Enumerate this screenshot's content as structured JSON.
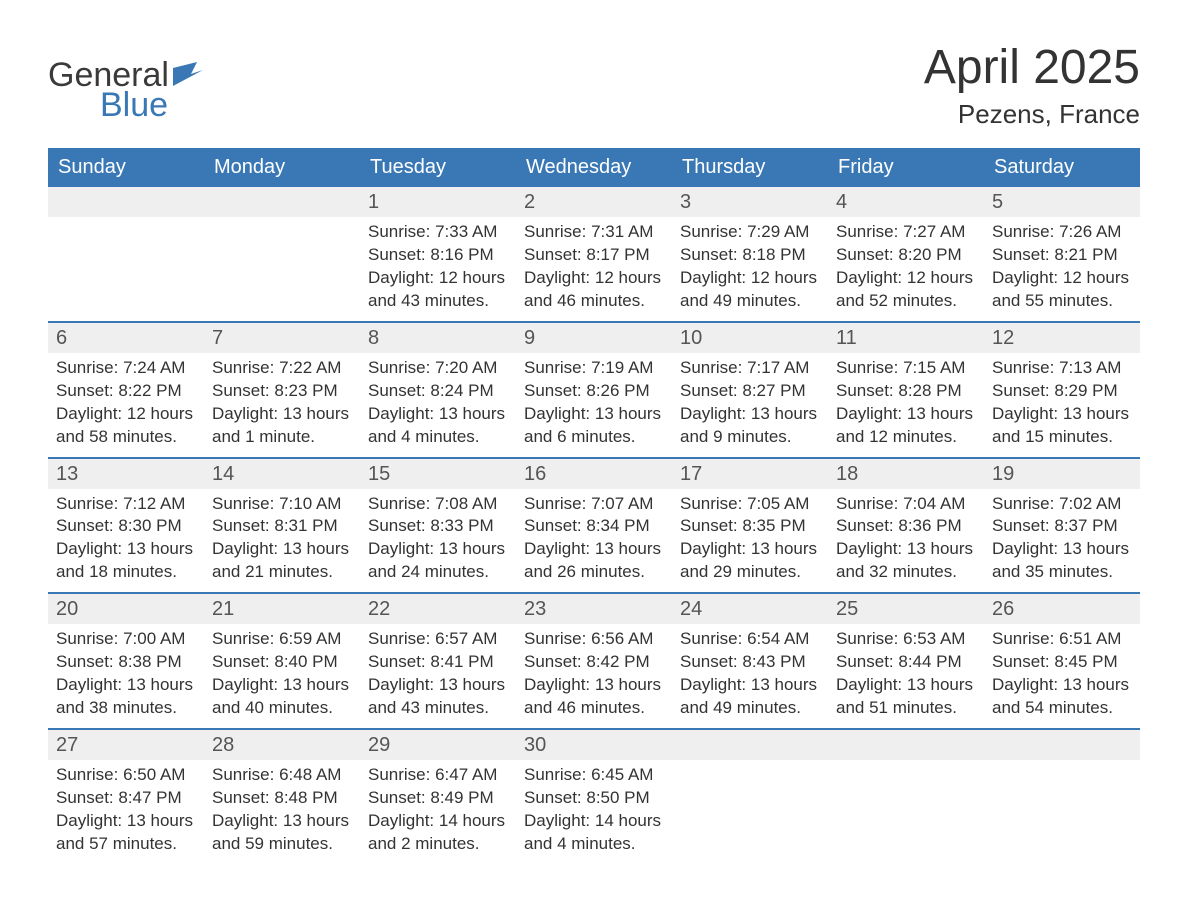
{
  "brand": {
    "word1": "General",
    "word2": "Blue",
    "word1_color": "#3a3a3a",
    "word2_color": "#3a78b5",
    "flag_color": "#3a78b5"
  },
  "title": "April 2025",
  "location": "Pezens, France",
  "colors": {
    "header_bg": "#3a78b5",
    "header_text": "#ffffff",
    "daynum_bg": "#efefef",
    "daynum_text": "#555555",
    "body_text": "#333333",
    "week_border": "#3a78b5",
    "page_bg": "#ffffff"
  },
  "fonts": {
    "title_size_pt": 36,
    "location_size_pt": 20,
    "header_size_pt": 15,
    "daynum_size_pt": 15,
    "body_size_pt": 13
  },
  "weekdays": [
    "Sunday",
    "Monday",
    "Tuesday",
    "Wednesday",
    "Thursday",
    "Friday",
    "Saturday"
  ],
  "weeks": [
    [
      {
        "day": null
      },
      {
        "day": null
      },
      {
        "day": "1",
        "sunrise": "Sunrise: 7:33 AM",
        "sunset": "Sunset: 8:16 PM",
        "daylight1": "Daylight: 12 hours",
        "daylight2": "and 43 minutes."
      },
      {
        "day": "2",
        "sunrise": "Sunrise: 7:31 AM",
        "sunset": "Sunset: 8:17 PM",
        "daylight1": "Daylight: 12 hours",
        "daylight2": "and 46 minutes."
      },
      {
        "day": "3",
        "sunrise": "Sunrise: 7:29 AM",
        "sunset": "Sunset: 8:18 PM",
        "daylight1": "Daylight: 12 hours",
        "daylight2": "and 49 minutes."
      },
      {
        "day": "4",
        "sunrise": "Sunrise: 7:27 AM",
        "sunset": "Sunset: 8:20 PM",
        "daylight1": "Daylight: 12 hours",
        "daylight2": "and 52 minutes."
      },
      {
        "day": "5",
        "sunrise": "Sunrise: 7:26 AM",
        "sunset": "Sunset: 8:21 PM",
        "daylight1": "Daylight: 12 hours",
        "daylight2": "and 55 minutes."
      }
    ],
    [
      {
        "day": "6",
        "sunrise": "Sunrise: 7:24 AM",
        "sunset": "Sunset: 8:22 PM",
        "daylight1": "Daylight: 12 hours",
        "daylight2": "and 58 minutes."
      },
      {
        "day": "7",
        "sunrise": "Sunrise: 7:22 AM",
        "sunset": "Sunset: 8:23 PM",
        "daylight1": "Daylight: 13 hours",
        "daylight2": "and 1 minute."
      },
      {
        "day": "8",
        "sunrise": "Sunrise: 7:20 AM",
        "sunset": "Sunset: 8:24 PM",
        "daylight1": "Daylight: 13 hours",
        "daylight2": "and 4 minutes."
      },
      {
        "day": "9",
        "sunrise": "Sunrise: 7:19 AM",
        "sunset": "Sunset: 8:26 PM",
        "daylight1": "Daylight: 13 hours",
        "daylight2": "and 6 minutes."
      },
      {
        "day": "10",
        "sunrise": "Sunrise: 7:17 AM",
        "sunset": "Sunset: 8:27 PM",
        "daylight1": "Daylight: 13 hours",
        "daylight2": "and 9 minutes."
      },
      {
        "day": "11",
        "sunrise": "Sunrise: 7:15 AM",
        "sunset": "Sunset: 8:28 PM",
        "daylight1": "Daylight: 13 hours",
        "daylight2": "and 12 minutes."
      },
      {
        "day": "12",
        "sunrise": "Sunrise: 7:13 AM",
        "sunset": "Sunset: 8:29 PM",
        "daylight1": "Daylight: 13 hours",
        "daylight2": "and 15 minutes."
      }
    ],
    [
      {
        "day": "13",
        "sunrise": "Sunrise: 7:12 AM",
        "sunset": "Sunset: 8:30 PM",
        "daylight1": "Daylight: 13 hours",
        "daylight2": "and 18 minutes."
      },
      {
        "day": "14",
        "sunrise": "Sunrise: 7:10 AM",
        "sunset": "Sunset: 8:31 PM",
        "daylight1": "Daylight: 13 hours",
        "daylight2": "and 21 minutes."
      },
      {
        "day": "15",
        "sunrise": "Sunrise: 7:08 AM",
        "sunset": "Sunset: 8:33 PM",
        "daylight1": "Daylight: 13 hours",
        "daylight2": "and 24 minutes."
      },
      {
        "day": "16",
        "sunrise": "Sunrise: 7:07 AM",
        "sunset": "Sunset: 8:34 PM",
        "daylight1": "Daylight: 13 hours",
        "daylight2": "and 26 minutes."
      },
      {
        "day": "17",
        "sunrise": "Sunrise: 7:05 AM",
        "sunset": "Sunset: 8:35 PM",
        "daylight1": "Daylight: 13 hours",
        "daylight2": "and 29 minutes."
      },
      {
        "day": "18",
        "sunrise": "Sunrise: 7:04 AM",
        "sunset": "Sunset: 8:36 PM",
        "daylight1": "Daylight: 13 hours",
        "daylight2": "and 32 minutes."
      },
      {
        "day": "19",
        "sunrise": "Sunrise: 7:02 AM",
        "sunset": "Sunset: 8:37 PM",
        "daylight1": "Daylight: 13 hours",
        "daylight2": "and 35 minutes."
      }
    ],
    [
      {
        "day": "20",
        "sunrise": "Sunrise: 7:00 AM",
        "sunset": "Sunset: 8:38 PM",
        "daylight1": "Daylight: 13 hours",
        "daylight2": "and 38 minutes."
      },
      {
        "day": "21",
        "sunrise": "Sunrise: 6:59 AM",
        "sunset": "Sunset: 8:40 PM",
        "daylight1": "Daylight: 13 hours",
        "daylight2": "and 40 minutes."
      },
      {
        "day": "22",
        "sunrise": "Sunrise: 6:57 AM",
        "sunset": "Sunset: 8:41 PM",
        "daylight1": "Daylight: 13 hours",
        "daylight2": "and 43 minutes."
      },
      {
        "day": "23",
        "sunrise": "Sunrise: 6:56 AM",
        "sunset": "Sunset: 8:42 PM",
        "daylight1": "Daylight: 13 hours",
        "daylight2": "and 46 minutes."
      },
      {
        "day": "24",
        "sunrise": "Sunrise: 6:54 AM",
        "sunset": "Sunset: 8:43 PM",
        "daylight1": "Daylight: 13 hours",
        "daylight2": "and 49 minutes."
      },
      {
        "day": "25",
        "sunrise": "Sunrise: 6:53 AM",
        "sunset": "Sunset: 8:44 PM",
        "daylight1": "Daylight: 13 hours",
        "daylight2": "and 51 minutes."
      },
      {
        "day": "26",
        "sunrise": "Sunrise: 6:51 AM",
        "sunset": "Sunset: 8:45 PM",
        "daylight1": "Daylight: 13 hours",
        "daylight2": "and 54 minutes."
      }
    ],
    [
      {
        "day": "27",
        "sunrise": "Sunrise: 6:50 AM",
        "sunset": "Sunset: 8:47 PM",
        "daylight1": "Daylight: 13 hours",
        "daylight2": "and 57 minutes."
      },
      {
        "day": "28",
        "sunrise": "Sunrise: 6:48 AM",
        "sunset": "Sunset: 8:48 PM",
        "daylight1": "Daylight: 13 hours",
        "daylight2": "and 59 minutes."
      },
      {
        "day": "29",
        "sunrise": "Sunrise: 6:47 AM",
        "sunset": "Sunset: 8:49 PM",
        "daylight1": "Daylight: 14 hours",
        "daylight2": "and 2 minutes."
      },
      {
        "day": "30",
        "sunrise": "Sunrise: 6:45 AM",
        "sunset": "Sunset: 8:50 PM",
        "daylight1": "Daylight: 14 hours",
        "daylight2": "and 4 minutes."
      },
      {
        "day": null
      },
      {
        "day": null
      },
      {
        "day": null
      }
    ]
  ]
}
